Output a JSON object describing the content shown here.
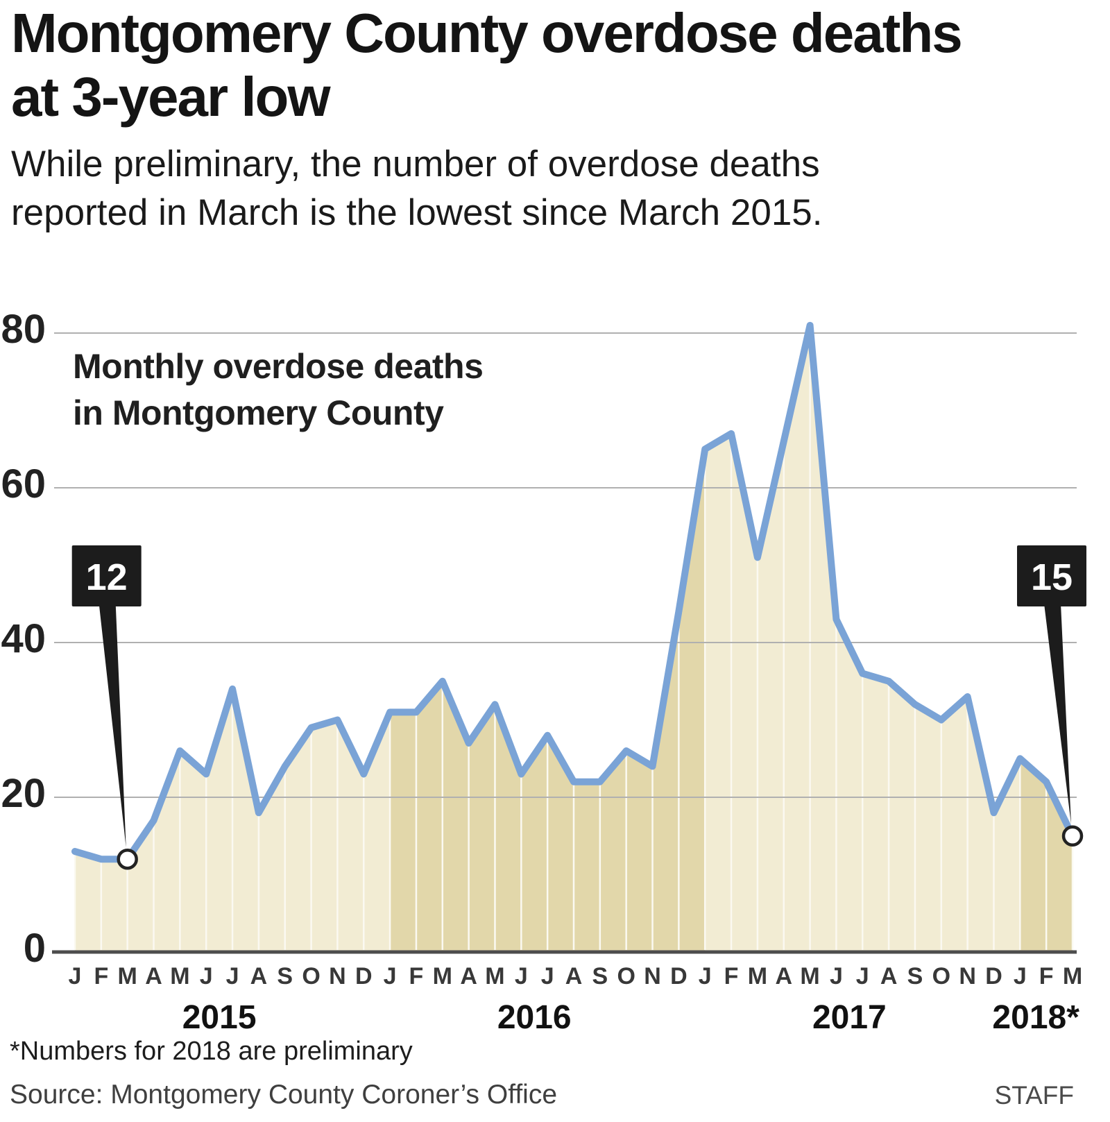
{
  "header": {
    "title_lines": [
      "Montgomery County overdose deaths",
      "at 3-year low"
    ],
    "subtitle_lines": [
      "While preliminary, the number of overdose deaths",
      "reported in March is the lowest since March 2015."
    ]
  },
  "footer": {
    "footnote": "*Numbers for 2018 are preliminary",
    "source": "Source: Montgomery County Coroner’s Office",
    "credit": "STAFF"
  },
  "chart_data": {
    "type": "area",
    "title_lines": [
      "Monthly overdose deaths",
      "in Montgomery County"
    ],
    "ylabel": "",
    "xlabel": "",
    "ylim": [
      0,
      80
    ],
    "yticks": [
      0,
      20,
      40,
      60,
      80
    ],
    "grid": "horizontal",
    "month_letters": [
      "J",
      "F",
      "M",
      "A",
      "M",
      "J",
      "J",
      "A",
      "S",
      "O",
      "N",
      "D"
    ],
    "years": [
      {
        "year": "2015",
        "fill": "light",
        "values": [
          13,
          12,
          12,
          17,
          26,
          23,
          34,
          18,
          24,
          29,
          30,
          23
        ]
      },
      {
        "year": "2016",
        "fill": "dark",
        "values": [
          31,
          31,
          35,
          27,
          32,
          23,
          28,
          22,
          22,
          26,
          24,
          44
        ]
      },
      {
        "year": "2017",
        "fill": "light",
        "values": [
          65,
          67,
          51,
          66,
          81,
          43,
          36,
          35,
          32,
          30,
          33,
          18
        ]
      },
      {
        "year": "2018*",
        "fill": "dark",
        "values": [
          25,
          22,
          15
        ]
      }
    ],
    "annotations": [
      {
        "label": "12",
        "month_index": 2
      },
      {
        "label": "15",
        "month_index": 38
      }
    ],
    "style": {
      "line": "#7aa3d6",
      "fill_light": "#f2ecd3",
      "fill_dark": "#e2d7aa",
      "separator": "#fbf9f1",
      "grid": "#b0b0b0",
      "axis": "#4d4d4d",
      "tick_text": "#222222",
      "month_text": "#383838",
      "year_text": "#111111",
      "callout_bg": "#1c1c1c",
      "callout_text": "#ffffff",
      "marker_fill": "#ffffff",
      "marker_stroke": "#222222",
      "inner_title": "#1f1f1f"
    }
  }
}
